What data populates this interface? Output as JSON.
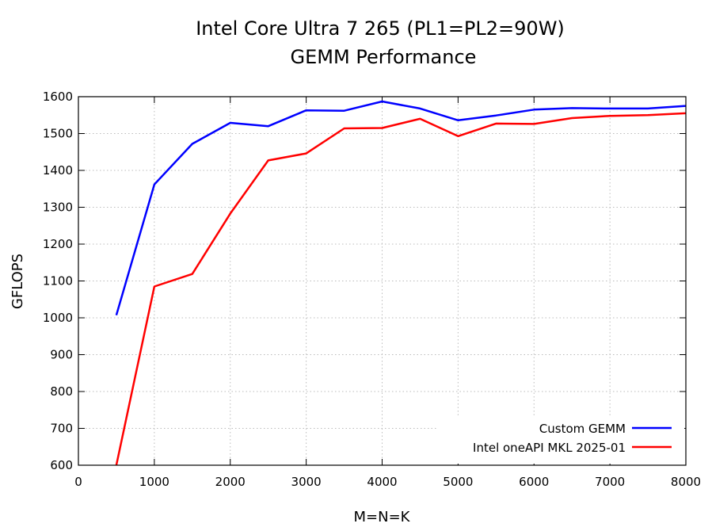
{
  "chart_data": {
    "type": "line",
    "title": "Intel Core Ultra 7 265 (PL1=PL2=90W)",
    "subtitle": "GEMM Performance",
    "xlabel": "M=N=K",
    "ylabel": "GFLOPS",
    "xlim": [
      0,
      8000
    ],
    "ylim": [
      600,
      1600
    ],
    "xticks": [
      0,
      1000,
      2000,
      3000,
      4000,
      5000,
      6000,
      7000,
      8000
    ],
    "yticks": [
      600,
      700,
      800,
      900,
      1000,
      1100,
      1200,
      1300,
      1400,
      1500,
      1600
    ],
    "grid": true,
    "legend_position": "bottom-right",
    "x": [
      500,
      1000,
      1500,
      2000,
      2500,
      3000,
      3500,
      4000,
      4500,
      5000,
      5500,
      6000,
      6500,
      7000,
      7500,
      8000
    ],
    "series": [
      {
        "name": "Custom GEMM",
        "color": "#0000ff",
        "values": [
          1007,
          1362,
          1472,
          1529,
          1520,
          1563,
          1562,
          1587,
          1568,
          1536,
          1549,
          1565,
          1569,
          1568,
          1568,
          1575
        ]
      },
      {
        "name": "Intel oneAPI MKL 2025-01",
        "color": "#ff0000",
        "values": [
          600,
          1085,
          1119,
          1283,
          1427,
          1446,
          1514,
          1515,
          1540,
          1493,
          1527,
          1526,
          1542,
          1548,
          1550,
          1555
        ]
      }
    ]
  }
}
